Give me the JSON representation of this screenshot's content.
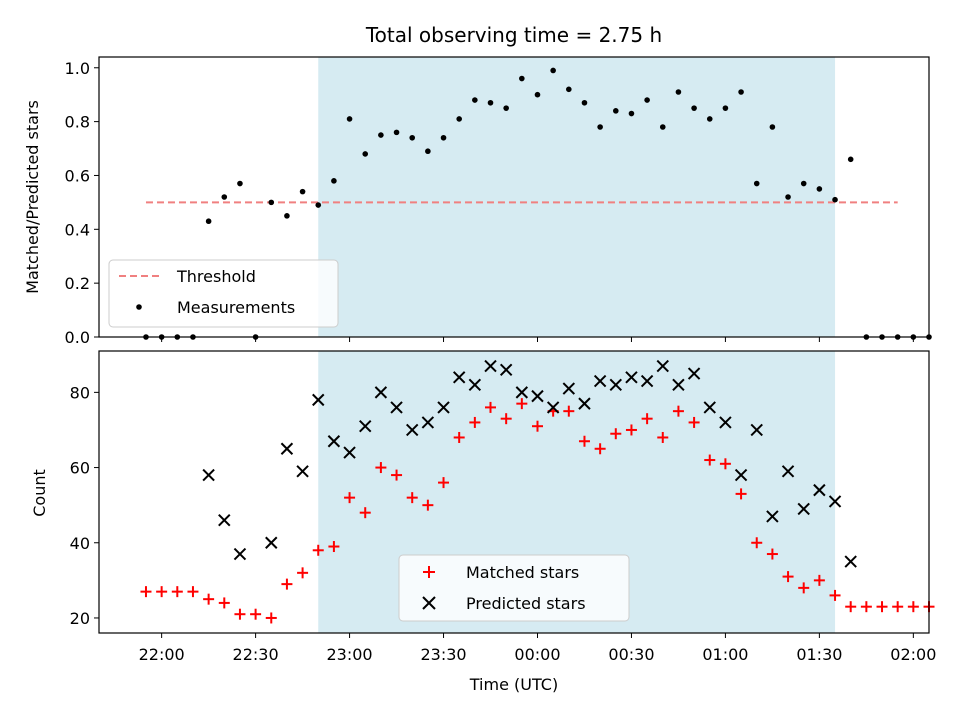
{
  "chart_data": [
    {
      "type": "scatter",
      "title": "Total observing time = 2.75 h",
      "xlabel": "",
      "ylabel": "Matched/Predicted stars",
      "ylim": [
        0,
        1.04
      ],
      "yticks": [
        "0.0",
        "0.2",
        "0.4",
        "0.6",
        "0.8",
        "1.0"
      ],
      "shaded_region": {
        "x": [
          "22:50",
          "01:35"
        ],
        "color": "#add8e6"
      },
      "threshold": {
        "name": "Threshold",
        "value": 0.5,
        "x": [
          "21:55",
          "01:55"
        ],
        "color": "#f08080"
      },
      "series": [
        {
          "name": "Measurements",
          "color": "#000000",
          "marker": "dot",
          "points": [
            [
              "21:55",
              0
            ],
            [
              "22:00",
              0
            ],
            [
              "22:05",
              0
            ],
            [
              "22:10",
              0
            ],
            [
              "22:15",
              0.43
            ],
            [
              "22:20",
              0.52
            ],
            [
              "22:25",
              0.57
            ],
            [
              "22:35",
              0.5
            ],
            [
              "22:40",
              0.45
            ],
            [
              "22:45",
              0.54
            ],
            [
              "22:50",
              0.49
            ],
            [
              "22:55",
              0.58
            ],
            [
              "23:00",
              0.81
            ],
            [
              "23:05",
              0.68
            ],
            [
              "23:10",
              0.75
            ],
            [
              "23:15",
              0.76
            ],
            [
              "23:20",
              0.74
            ],
            [
              "23:25",
              0.69
            ],
            [
              "23:30",
              0.74
            ],
            [
              "23:35",
              0.81
            ],
            [
              "23:40",
              0.88
            ],
            [
              "23:45",
              0.87
            ],
            [
              "23:50",
              0.85
            ],
            [
              "23:55",
              0.96
            ],
            [
              "00:00",
              0.9
            ],
            [
              "00:05",
              0.99
            ],
            [
              "00:10",
              0.92
            ],
            [
              "00:15",
              0.87
            ],
            [
              "00:20",
              0.78
            ],
            [
              "00:25",
              0.84
            ],
            [
              "00:30",
              0.83
            ],
            [
              "00:35",
              0.88
            ],
            [
              "00:40",
              0.78
            ],
            [
              "00:45",
              0.91
            ],
            [
              "00:50",
              0.85
            ],
            [
              "00:55",
              0.81
            ],
            [
              "01:00",
              0.85
            ],
            [
              "01:05",
              0.91
            ],
            [
              "01:10",
              0.57
            ],
            [
              "01:15",
              0.78
            ],
            [
              "01:20",
              0.52
            ],
            [
              "01:25",
              0.57
            ],
            [
              "01:30",
              0.55
            ],
            [
              "01:35",
              0.51
            ],
            [
              "01:40",
              0.66
            ],
            [
              "01:45",
              0
            ],
            [
              "01:50",
              0
            ],
            [
              "01:55",
              0
            ],
            [
              "02:00",
              0
            ],
            [
              "02:05",
              0
            ],
            [
              "22:30",
              0
            ]
          ]
        }
      ],
      "legend": {
        "placement": "lower-left",
        "entries": [
          "Threshold",
          "Measurements"
        ]
      }
    },
    {
      "type": "scatter",
      "xlabel": "Time (UTC)",
      "ylabel": "Count",
      "ylim": [
        16,
        91
      ],
      "xlim": [
        "21:40",
        "02:05"
      ],
      "xticks": [
        "22:00",
        "22:30",
        "23:00",
        "23:30",
        "00:00",
        "00:30",
        "01:00",
        "01:30",
        "02:00"
      ],
      "yticks": [
        "20",
        "40",
        "60",
        "80"
      ],
      "shaded_region": {
        "x": [
          "22:50",
          "01:35"
        ],
        "color": "#add8e6"
      },
      "series": [
        {
          "name": "Matched stars",
          "color": "#ff0000",
          "marker": "plus",
          "points": [
            [
              "21:55",
              27
            ],
            [
              "22:00",
              27
            ],
            [
              "22:05",
              27
            ],
            [
              "22:10",
              27
            ],
            [
              "22:15",
              25
            ],
            [
              "22:20",
              24
            ],
            [
              "22:25",
              21
            ],
            [
              "22:30",
              21
            ],
            [
              "22:35",
              20
            ],
            [
              "22:40",
              29
            ],
            [
              "22:45",
              32
            ],
            [
              "22:50",
              38
            ],
            [
              "22:55",
              39
            ],
            [
              "23:00",
              52
            ],
            [
              "23:05",
              48
            ],
            [
              "23:10",
              60
            ],
            [
              "23:15",
              58
            ],
            [
              "23:20",
              52
            ],
            [
              "23:25",
              50
            ],
            [
              "23:30",
              56
            ],
            [
              "23:35",
              68
            ],
            [
              "23:40",
              72
            ],
            [
              "23:45",
              76
            ],
            [
              "23:50",
              73
            ],
            [
              "23:55",
              77
            ],
            [
              "00:00",
              71
            ],
            [
              "00:05",
              75
            ],
            [
              "00:10",
              75
            ],
            [
              "00:15",
              67
            ],
            [
              "00:20",
              65
            ],
            [
              "00:25",
              69
            ],
            [
              "00:30",
              70
            ],
            [
              "00:35",
              73
            ],
            [
              "00:40",
              68
            ],
            [
              "00:45",
              75
            ],
            [
              "00:50",
              72
            ],
            [
              "00:55",
              62
            ],
            [
              "01:00",
              61
            ],
            [
              "01:05",
              53
            ],
            [
              "01:10",
              40
            ],
            [
              "01:15",
              37
            ],
            [
              "01:20",
              31
            ],
            [
              "01:25",
              28
            ],
            [
              "01:30",
              30
            ],
            [
              "01:35",
              26
            ],
            [
              "01:40",
              23
            ],
            [
              "01:45",
              23
            ],
            [
              "01:50",
              23
            ],
            [
              "01:55",
              23
            ],
            [
              "02:00",
              23
            ],
            [
              "02:05",
              23
            ]
          ]
        },
        {
          "name": "Predicted stars",
          "color": "#000000",
          "marker": "x",
          "points": [
            [
              "22:15",
              58
            ],
            [
              "22:20",
              46
            ],
            [
              "22:25",
              37
            ],
            [
              "22:35",
              40
            ],
            [
              "22:40",
              65
            ],
            [
              "22:45",
              59
            ],
            [
              "22:50",
              78
            ],
            [
              "22:55",
              67
            ],
            [
              "23:00",
              64
            ],
            [
              "23:05",
              71
            ],
            [
              "23:10",
              80
            ],
            [
              "23:15",
              76
            ],
            [
              "23:20",
              70
            ],
            [
              "23:25",
              72
            ],
            [
              "23:30",
              76
            ],
            [
              "23:35",
              84
            ],
            [
              "23:40",
              82
            ],
            [
              "23:45",
              87
            ],
            [
              "23:50",
              86
            ],
            [
              "23:55",
              80
            ],
            [
              "00:00",
              79
            ],
            [
              "00:05",
              76
            ],
            [
              "00:10",
              81
            ],
            [
              "00:15",
              77
            ],
            [
              "00:20",
              83
            ],
            [
              "00:25",
              82
            ],
            [
              "00:30",
              84
            ],
            [
              "00:35",
              83
            ],
            [
              "00:40",
              87
            ],
            [
              "00:45",
              82
            ],
            [
              "00:50",
              85
            ],
            [
              "00:55",
              76
            ],
            [
              "01:00",
              72
            ],
            [
              "01:05",
              58
            ],
            [
              "01:10",
              70
            ],
            [
              "01:15",
              47
            ],
            [
              "01:20",
              59
            ],
            [
              "01:25",
              49
            ],
            [
              "01:30",
              54
            ],
            [
              "01:35",
              51
            ],
            [
              "01:40",
              35
            ]
          ]
        }
      ],
      "legend": {
        "placement": "lower-center",
        "entries": [
          "Matched stars",
          "Predicted stars"
        ]
      }
    }
  ]
}
